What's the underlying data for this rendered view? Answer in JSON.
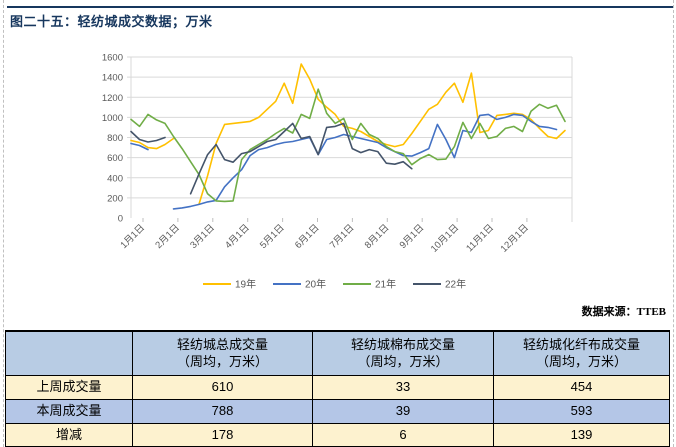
{
  "page": {
    "title": "图二十五：轻纺城成交数据；万米",
    "source_note": "数据来源：TTEB",
    "accent_color": "#17375E"
  },
  "chart_data": {
    "type": "line",
    "title": "",
    "xlabel": "",
    "ylabel": "",
    "x_tick_labels": [
      "1月1日",
      "2月1日",
      "3月1日",
      "4月1日",
      "5月1日",
      "6月1日",
      "7月1日",
      "8月1日",
      "9月1日",
      "10月1日",
      "11月1日",
      "12月1日"
    ],
    "x_unit": "weekly points across one year",
    "ylim": [
      0,
      1600
    ],
    "y_step": 200,
    "grid": true,
    "legend_position": "bottom",
    "series": [
      {
        "name": "19年",
        "color": "#FFC000",
        "values": [
          770,
          750,
          700,
          690,
          730,
          790,
          null,
          null,
          140,
          420,
          740,
          930,
          940,
          950,
          960,
          1000,
          1080,
          1160,
          1340,
          1140,
          1530,
          1380,
          1180,
          1100,
          1030,
          910,
          890,
          860,
          810,
          760,
          730,
          710,
          730,
          840,
          960,
          1080,
          1130,
          1250,
          1340,
          1150,
          1440,
          850,
          870,
          1020,
          1030,
          1040,
          1030,
          980,
          890,
          810,
          790,
          870
        ]
      },
      {
        "name": "20年",
        "color": "#4472C4",
        "values": [
          740,
          720,
          680,
          null,
          null,
          90,
          100,
          115,
          135,
          160,
          175,
          310,
          400,
          480,
          620,
          680,
          700,
          730,
          750,
          760,
          780,
          800,
          630,
          780,
          800,
          830,
          810,
          790,
          770,
          750,
          700,
          660,
          620,
          615,
          650,
          690,
          930,
          780,
          600,
          870,
          850,
          1020,
          1030,
          980,
          1000,
          1030,
          1020,
          960,
          910,
          900,
          880,
          null
        ]
      },
      {
        "name": "21年",
        "color": "#70AD47",
        "values": [
          980,
          910,
          1030,
          975,
          940,
          810,
          690,
          560,
          430,
          240,
          170,
          165,
          170,
          580,
          680,
          730,
          780,
          840,
          890,
          845,
          1030,
          990,
          1280,
          1040,
          940,
          990,
          780,
          940,
          830,
          790,
          710,
          660,
          640,
          530,
          590,
          630,
          580,
          585,
          710,
          950,
          790,
          940,
          790,
          810,
          890,
          910,
          860,
          1060,
          1130,
          1090,
          1120,
          960
        ]
      },
      {
        "name": "22年",
        "color": "#44546A",
        "values": [
          860,
          780,
          755,
          770,
          800,
          null,
          null,
          240,
          440,
          630,
          730,
          580,
          555,
          640,
          660,
          710,
          760,
          780,
          860,
          940,
          790,
          810,
          630,
          900,
          910,
          940,
          690,
          650,
          680,
          660,
          545,
          535,
          560,
          490,
          null,
          null,
          null,
          null,
          null,
          null,
          null,
          null,
          null,
          null,
          null,
          null,
          null,
          null,
          null,
          null,
          null,
          null
        ]
      }
    ]
  },
  "table": {
    "columns": [
      {
        "title": "",
        "sub": ""
      },
      {
        "title": "轻纺城总成交量",
        "sub": "（周均，万米）"
      },
      {
        "title": "轻纺城棉布成交量",
        "sub": "（周均，万米）"
      },
      {
        "title": "轻纺城化纤布成交量",
        "sub": "（周均，万米）"
      }
    ],
    "rows": [
      {
        "label": "上周成交量",
        "values": [
          "610",
          "33",
          "454"
        ]
      },
      {
        "label": "本周成交量",
        "values": [
          "788",
          "39",
          "593"
        ]
      },
      {
        "label": "增减",
        "values": [
          "178",
          "6",
          "139"
        ],
        "value_color": "#FF0000"
      }
    ],
    "colors": {
      "header_bg": "#B8CCE4",
      "row_cream_bg": "#FDF2CF",
      "row_blue_bg": "#B4C6E7",
      "change_value_color": "#FF0000"
    }
  }
}
